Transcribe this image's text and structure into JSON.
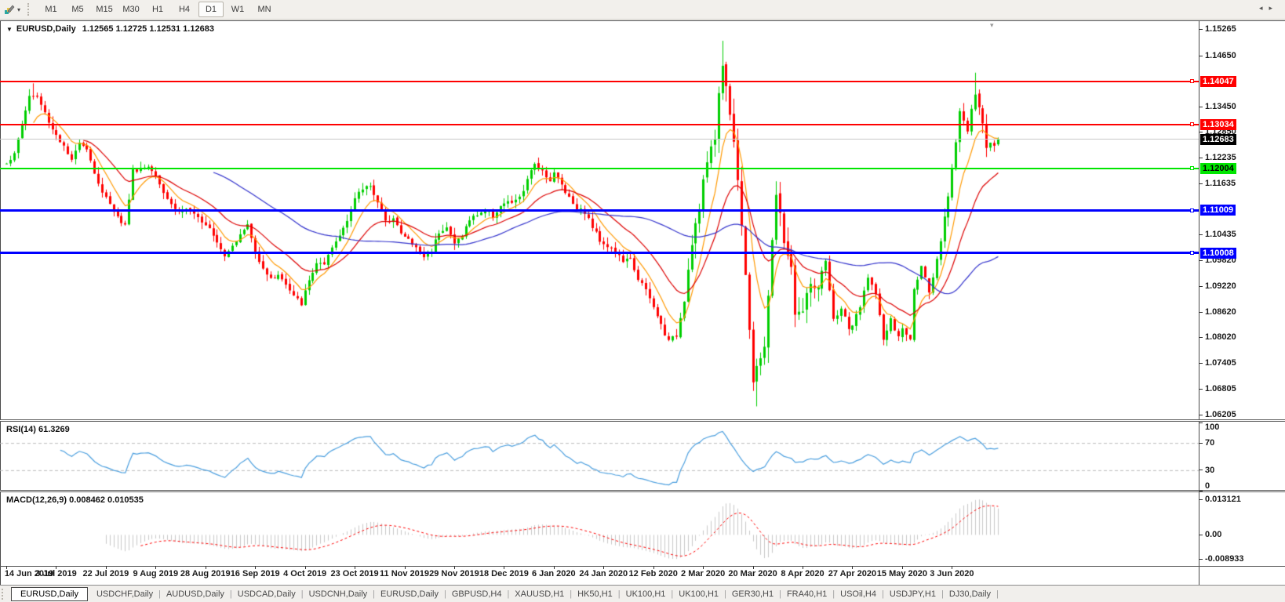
{
  "toolbar": {
    "timeframes": [
      "M1",
      "M5",
      "M15",
      "M30",
      "H1",
      "H4",
      "D1",
      "W1",
      "MN"
    ],
    "active_timeframe": "D1"
  },
  "chart": {
    "title_symbol": "EURUSD,Daily",
    "title_quotes": "1.12565 1.12725 1.12531 1.12683"
  },
  "icons": {
    "chart_menu_triangle": "▼",
    "toolbar_dropdown": "▾",
    "collapse_triangle": "▾",
    "tab_separator": "|",
    "tab_nav_left": "◂",
    "tab_nav_right": "▸"
  },
  "price_axis": {
    "tick_labels": [
      "1.15265",
      "1.14650",
      "1.13450",
      "1.12850",
      "1.12235",
      "1.11635",
      "1.10435",
      "1.09820",
      "1.09220",
      "1.08620",
      "1.08020",
      "1.07405",
      "1.06805",
      "1.06205"
    ]
  },
  "rsi_panel": {
    "label": "RSI(14) 61.3269",
    "tick_labels": [
      "100",
      "70",
      "30",
      "0"
    ]
  },
  "macd_panel": {
    "label": "MACD(12,26,9) 0.008462 0.010535",
    "tick_labels": [
      "0.013121",
      "0.00",
      "-0.008933"
    ]
  },
  "date_axis": {
    "tick_labels": [
      "14 Jun 2019",
      "3 Jul 2019",
      "22 Jul 2019",
      "9 Aug 2019",
      "28 Aug 2019",
      "16 Sep 2019",
      "4 Oct 2019",
      "23 Oct 2019",
      "11 Nov 2019",
      "29 Nov 2019",
      "18 Dec 2019",
      "6 Jan 2020",
      "24 Jan 2020",
      "12 Feb 2020",
      "2 Mar 2020",
      "20 Mar 2020",
      "8 Apr 2020",
      "27 Apr 2020",
      "15 May 2020",
      "3 Jun 2020"
    ]
  },
  "tabs": {
    "items": [
      {
        "label": "EURUSD,Daily",
        "active": true
      },
      {
        "label": "USDCHF,Daily",
        "active": false
      },
      {
        "label": "AUDUSD,Daily",
        "active": false
      },
      {
        "label": "USDCAD,Daily",
        "active": false
      },
      {
        "label": "USDCNH,Daily",
        "active": false
      },
      {
        "label": "EURUSD,Daily",
        "active": false
      },
      {
        "label": "GBPUSD,H4",
        "active": false
      },
      {
        "label": "XAUUSD,H1",
        "active": false
      },
      {
        "label": "HK50,H1",
        "active": false
      },
      {
        "label": "UK100,H1",
        "active": false
      },
      {
        "label": "UK100,H1",
        "active": false
      },
      {
        "label": "GER30,H1",
        "active": false
      },
      {
        "label": "FRA40,H1",
        "active": false
      },
      {
        "label": "USOil,H4",
        "active": false
      },
      {
        "label": "USDJPY,H1",
        "active": false
      },
      {
        "label": "DJ30,Daily",
        "active": false
      }
    ]
  },
  "colors": {
    "candle_up": "#00CE00",
    "candle_down": "#FF0000",
    "ma_fast": "#FF9900",
    "ma_mid": "#DD0000",
    "ma_slow": "#3333CC",
    "rsi_line": "#4A9EDE",
    "rsi_levels": "#BBBBBB",
    "macd_hist": "#C8C8C8",
    "macd_signal": "#FF0000",
    "current_price_line": "#C8C8C8",
    "current_price_label_bg": "#000000"
  },
  "chart_data": {
    "type": "candlestick",
    "symbol": "EURUSD",
    "timeframe": "Daily",
    "current": {
      "open": 1.12565,
      "high": 1.12725,
      "low": 1.12531,
      "close": 1.12683,
      "label": "1.12683"
    },
    "ylim": [
      1.06076,
      1.15462
    ],
    "y_tick_values": [
      1.15265,
      1.1465,
      1.1345,
      1.1285,
      1.12235,
      1.11635,
      1.10435,
      1.0982,
      1.0922,
      1.0862,
      1.0802,
      1.07405,
      1.06805,
      1.06205
    ],
    "candle_count": 260,
    "candles_per_x_tick": 13,
    "close_anchors": [
      [
        0,
        1.1215
      ],
      [
        2,
        1.1232
      ],
      [
        4,
        1.1305
      ],
      [
        6,
        1.137
      ],
      [
        8,
        1.1368
      ],
      [
        10,
        1.133
      ],
      [
        12,
        1.1292
      ],
      [
        13,
        1.128
      ],
      [
        15,
        1.125
      ],
      [
        17,
        1.1215
      ],
      [
        19,
        1.1265
      ],
      [
        21,
        1.1248
      ],
      [
        23,
        1.119
      ],
      [
        25,
        1.114
      ],
      [
        27,
        1.112
      ],
      [
        29,
        1.1085
      ],
      [
        31,
        1.1065
      ],
      [
        33,
        1.1195
      ],
      [
        35,
        1.12
      ],
      [
        37,
        1.1205
      ],
      [
        39,
        1.1188
      ],
      [
        41,
        1.1145
      ],
      [
        43,
        1.1115
      ],
      [
        45,
        1.1098
      ],
      [
        47,
        1.1105
      ],
      [
        49,
        1.1088
      ],
      [
        51,
        1.1078
      ],
      [
        53,
        1.1062
      ],
      [
        55,
        1.103
      ],
      [
        57,
        1.0995
      ],
      [
        59,
        1.1022
      ],
      [
        61,
        1.1042
      ],
      [
        63,
        1.1068
      ],
      [
        65,
        1.1002
      ],
      [
        67,
        1.0968
      ],
      [
        69,
        1.0938
      ],
      [
        71,
        1.0952
      ],
      [
        73,
        1.0925
      ],
      [
        75,
        1.0898
      ],
      [
        77,
        1.0882
      ],
      [
        79,
        1.0935
      ],
      [
        81,
        1.0978
      ],
      [
        83,
        1.097
      ],
      [
        85,
        1.1012
      ],
      [
        87,
        1.1042
      ],
      [
        89,
        1.1082
      ],
      [
        91,
        1.1128
      ],
      [
        93,
        1.1152
      ],
      [
        95,
        1.1162
      ],
      [
        97,
        1.112
      ],
      [
        99,
        1.1072
      ],
      [
        101,
        1.1088
      ],
      [
        103,
        1.1045
      ],
      [
        105,
        1.1032
      ],
      [
        107,
        1.1012
      ],
      [
        109,
        1.0992
      ],
      [
        111,
        1.1008
      ],
      [
        113,
        1.1052
      ],
      [
        115,
        1.1062
      ],
      [
        117,
        1.1022
      ],
      [
        119,
        1.1045
      ],
      [
        121,
        1.1078
      ],
      [
        123,
        1.1092
      ],
      [
        125,
        1.1102
      ],
      [
        127,
        1.1088
      ],
      [
        129,
        1.1112
      ],
      [
        131,
        1.1118
      ],
      [
        133,
        1.1122
      ],
      [
        135,
        1.1148
      ],
      [
        137,
        1.1192
      ],
      [
        138,
        1.1212
      ],
      [
        140,
        1.1195
      ],
      [
        142,
        1.1172
      ],
      [
        143,
        1.1188
      ],
      [
        145,
        1.1162
      ],
      [
        147,
        1.1132
      ],
      [
        149,
        1.1105
      ],
      [
        151,
        1.1098
      ],
      [
        153,
        1.1062
      ],
      [
        155,
        1.1032
      ],
      [
        157,
        1.1018
      ],
      [
        159,
        1.1002
      ],
      [
        161,
        1.0982
      ],
      [
        163,
        1.0985
      ],
      [
        165,
        1.0942
      ],
      [
        167,
        1.0912
      ],
      [
        169,
        1.0872
      ],
      [
        171,
        1.0832
      ],
      [
        173,
        1.0792
      ],
      [
        175,
        1.0808
      ],
      [
        177,
        1.0892
      ],
      [
        179,
        1.1032
      ],
      [
        181,
        1.1102
      ],
      [
        183,
        1.1218
      ],
      [
        185,
        1.1282
      ],
      [
        187,
        1.145
      ],
      [
        188,
        1.1395
      ],
      [
        189,
        1.133
      ],
      [
        191,
        1.1185
      ],
      [
        193,
        1.0958
      ],
      [
        195,
        1.0692
      ],
      [
        196,
        1.0722
      ],
      [
        198,
        1.0788
      ],
      [
        200,
        1.1022
      ],
      [
        201,
        1.1138
      ],
      [
        203,
        1.1032
      ],
      [
        205,
        1.0962
      ],
      [
        206,
        1.0862
      ],
      [
        208,
        1.0862
      ],
      [
        210,
        1.0932
      ],
      [
        212,
        1.0912
      ],
      [
        214,
        1.0978
      ],
      [
        216,
        1.0842
      ],
      [
        218,
        1.0872
      ],
      [
        220,
        1.0822
      ],
      [
        221,
        1.0832
      ],
      [
        223,
        1.0872
      ],
      [
        225,
        1.0948
      ],
      [
        227,
        1.0902
      ],
      [
        229,
        1.0798
      ],
      [
        231,
        1.0842
      ],
      [
        233,
        1.0802
      ],
      [
        234,
        1.0822
      ],
      [
        236,
        1.0798
      ],
      [
        237,
        1.0912
      ],
      [
        239,
        1.0975
      ],
      [
        241,
        1.0902
      ],
      [
        243,
        1.0982
      ],
      [
        245,
        1.1078
      ],
      [
        247,
        1.1202
      ],
      [
        249,
        1.1335
      ],
      [
        251,
        1.1288
      ],
      [
        253,
        1.1375
      ],
      [
        255,
        1.1302
      ],
      [
        256,
        1.1252
      ],
      [
        257,
        1.1262
      ],
      [
        258,
        1.1258
      ],
      [
        259,
        1.12683
      ]
    ],
    "extremes": [
      {
        "i": 7,
        "high": 1.14
      },
      {
        "i": 187,
        "high": 1.15
      },
      {
        "i": 196,
        "low": 1.064
      },
      {
        "i": 253,
        "high": 1.1425
      }
    ],
    "volatility_zones": [
      {
        "from": 178,
        "to": 214,
        "mult": 2.4
      },
      {
        "from": 244,
        "to": 256,
        "mult": 1.5
      }
    ],
    "noise": 0.0006,
    "wick": 0.0016,
    "horizontal_lines": [
      {
        "price": 1.14047,
        "label": "1.14047",
        "color": "#FF0000",
        "text_color": "#FFFFFF",
        "thickness": 2
      },
      {
        "price": 1.13034,
        "label": "1.13034",
        "color": "#FF0000",
        "text_color": "#FFFFFF",
        "thickness": 2
      },
      {
        "price": 1.12004,
        "label": "1.12004",
        "color": "#00E600",
        "text_color": "#000000",
        "thickness": 2
      },
      {
        "price": 1.11009,
        "label": "1.11009",
        "color": "#0000FF",
        "text_color": "#FFFFFF",
        "thickness": 3
      },
      {
        "price": 1.10008,
        "label": "1.10008",
        "color": "#0000FF",
        "text_color": "#FFFFFF",
        "thickness": 3
      }
    ],
    "moving_averages": [
      {
        "period": 8,
        "method": "ema",
        "color": "#FF9900"
      },
      {
        "period": 21,
        "method": "ema",
        "color": "#DD0000"
      },
      {
        "period": 55,
        "method": "sma",
        "color": "#3333CC"
      }
    ],
    "rsi": {
      "period": 14,
      "current": 61.3269,
      "levels": [
        70,
        30
      ],
      "range": [
        0,
        100
      ]
    },
    "macd": {
      "fast": 12,
      "slow": 26,
      "signal": 9,
      "current_main": 0.008462,
      "current_signal": 0.010535,
      "range": [
        -0.0115,
        0.0155
      ],
      "tick_values": [
        0.013121,
        0,
        -0.008933
      ]
    }
  }
}
